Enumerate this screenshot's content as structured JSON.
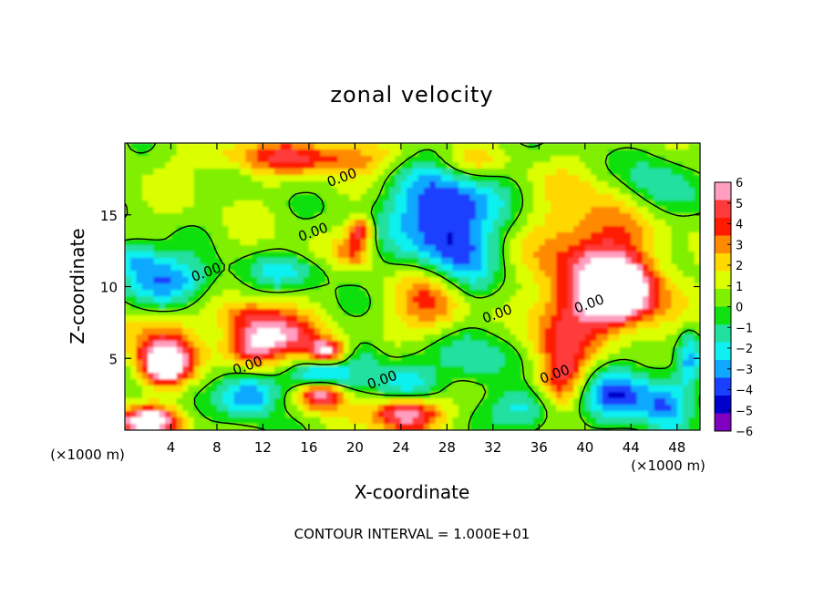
{
  "chart_data": {
    "type": "heatmap",
    "title": "zonal velocity",
    "xlabel": "X-coordinate",
    "ylabel": "Z-coordinate",
    "x_unit_note": "(×1000 m)",
    "y_unit_note": "(×1000 m)",
    "footer": "CONTOUR INTERVAL = 1.000E+01",
    "xlim": [
      0,
      50
    ],
    "ylim": [
      0,
      20
    ],
    "x_ticks": [
      4,
      8,
      12,
      16,
      20,
      24,
      28,
      32,
      36,
      40,
      44,
      48
    ],
    "x_tick_labels": [
      "4",
      "8",
      "12",
      "16",
      "20",
      "24",
      "28",
      "32",
      "36",
      "40",
      "44",
      "48"
    ],
    "y_ticks": [
      5,
      10,
      15
    ],
    "y_tick_labels": [
      "5",
      "10",
      "15"
    ],
    "colorbar": {
      "min": -6,
      "max": 6,
      "tick_values": [
        6,
        5,
        4,
        3,
        2,
        1,
        0,
        -1,
        -2,
        -3,
        -4,
        -5,
        -6
      ],
      "tick_labels": [
        "6",
        "5",
        "4",
        "3",
        "2",
        "1",
        "0",
        "−1",
        "−2",
        "−3",
        "−4",
        "−5",
        "−6"
      ],
      "colors": [
        "#ff9ec0",
        "#ff3a3a",
        "#ff1a00",
        "#ff8a00",
        "#ffd800",
        "#dcff00",
        "#80f000",
        "#10e010",
        "#20e0a0",
        "#10f0f0",
        "#10a8ff",
        "#1a40ff",
        "#0000cc",
        "#8000c0"
      ]
    },
    "contour_labels": [
      {
        "text": "0.00",
        "x": 19,
        "z": 17.3
      },
      {
        "text": "0.00",
        "x": 16.5,
        "z": 13.5
      },
      {
        "text": "0.00",
        "x": 7.2,
        "z": 10.7
      },
      {
        "text": "0.00",
        "x": 10.8,
        "z": 4.2
      },
      {
        "text": "0.00",
        "x": 22.5,
        "z": 3.2
      },
      {
        "text": "0.00",
        "x": 32.5,
        "z": 7.8
      },
      {
        "text": "0.00",
        "x": 40.5,
        "z": 8.5
      },
      {
        "text": "0.00",
        "x": 37.5,
        "z": 3.6
      }
    ],
    "features": [
      {
        "x": 27,
        "z": 9,
        "value": 6.5,
        "sx": 3.2,
        "sz": 2.8
      },
      {
        "x": 28,
        "z": 11.5,
        "value": -5,
        "sx": 4,
        "sz": 5
      },
      {
        "x": 27.5,
        "z": 16,
        "value": -3,
        "sx": 5,
        "sz": 3
      },
      {
        "x": 24.5,
        "z": 3,
        "value": -2.5,
        "sx": 3,
        "sz": 2
      },
      {
        "x": 43,
        "z": 9.5,
        "value": 7,
        "sx": 3.2,
        "sz": 2.2
      },
      {
        "x": 41,
        "z": 12,
        "value": 4,
        "sx": 5,
        "sz": 4.5
      },
      {
        "x": 38,
        "z": 7,
        "value": 2.5,
        "sx": 3,
        "sz": 3
      },
      {
        "x": 38,
        "z": 3.5,
        "value": 3.5,
        "sx": 2,
        "sz": 2
      },
      {
        "x": 43,
        "z": 2.5,
        "value": -4.5,
        "sx": 3,
        "sz": 2
      },
      {
        "x": 3.5,
        "z": 10.5,
        "value": -4,
        "sx": 4,
        "sz": 1.6
      },
      {
        "x": 1,
        "z": 12,
        "value": -3,
        "sx": 2,
        "sz": 1.2
      },
      {
        "x": 3.5,
        "z": 4.5,
        "value": 7,
        "sx": 2,
        "sz": 1.3
      },
      {
        "x": 3,
        "z": 6,
        "value": 3,
        "sx": 3,
        "sz": 2
      },
      {
        "x": 11,
        "z": 6,
        "value": 5,
        "sx": 2.3,
        "sz": 1.6
      },
      {
        "x": 14,
        "z": 6.5,
        "value": 4,
        "sx": 3,
        "sz": 1.4
      },
      {
        "x": 17.5,
        "z": 5.5,
        "value": 6,
        "sx": 1.6,
        "sz": 0.8
      },
      {
        "x": 11,
        "z": 2.5,
        "value": -4.5,
        "sx": 2.5,
        "sz": 1.6
      },
      {
        "x": 17,
        "z": 2.5,
        "value": 6.5,
        "sx": 2,
        "sz": 1
      },
      {
        "x": 17,
        "z": 3.5,
        "value": -3.5,
        "sx": 3,
        "sz": 1.2
      },
      {
        "x": 24.5,
        "z": 1.2,
        "value": 7,
        "sx": 2.8,
        "sz": 1.2
      },
      {
        "x": 2,
        "z": 0.6,
        "value": 7,
        "sx": 2.5,
        "sz": 0.9
      },
      {
        "x": 11,
        "z": 8,
        "value": 2.5,
        "sx": 3,
        "sz": 1
      },
      {
        "x": 20,
        "z": 12.5,
        "value": 3,
        "sx": 1.5,
        "sz": 1.2
      },
      {
        "x": 20.5,
        "z": 14,
        "value": 4,
        "sx": 1,
        "sz": 0.8
      },
      {
        "x": 14,
        "z": 11,
        "value": -2,
        "sx": 4,
        "sz": 1.2
      },
      {
        "x": 16,
        "z": 19,
        "value": 3.5,
        "sx": 8,
        "sz": 1.2
      },
      {
        "x": 30,
        "z": 18.5,
        "value": 2,
        "sx": 3,
        "sz": 1.2
      },
      {
        "x": 46,
        "z": 17,
        "value": -2.5,
        "sx": 3,
        "sz": 2.5
      },
      {
        "x": 47,
        "z": 2,
        "value": -3.5,
        "sx": 2,
        "sz": 2
      },
      {
        "x": 35,
        "z": 1.5,
        "value": -3,
        "sx": 3,
        "sz": 1.5
      },
      {
        "x": 30,
        "z": 5,
        "value": -2,
        "sx": 3,
        "sz": 2
      },
      {
        "x": 21,
        "z": 5,
        "value": -2,
        "sx": 2,
        "sz": 1.5
      },
      {
        "x": 49,
        "z": 5,
        "value": -3,
        "sx": 1,
        "sz": 2
      }
    ]
  }
}
